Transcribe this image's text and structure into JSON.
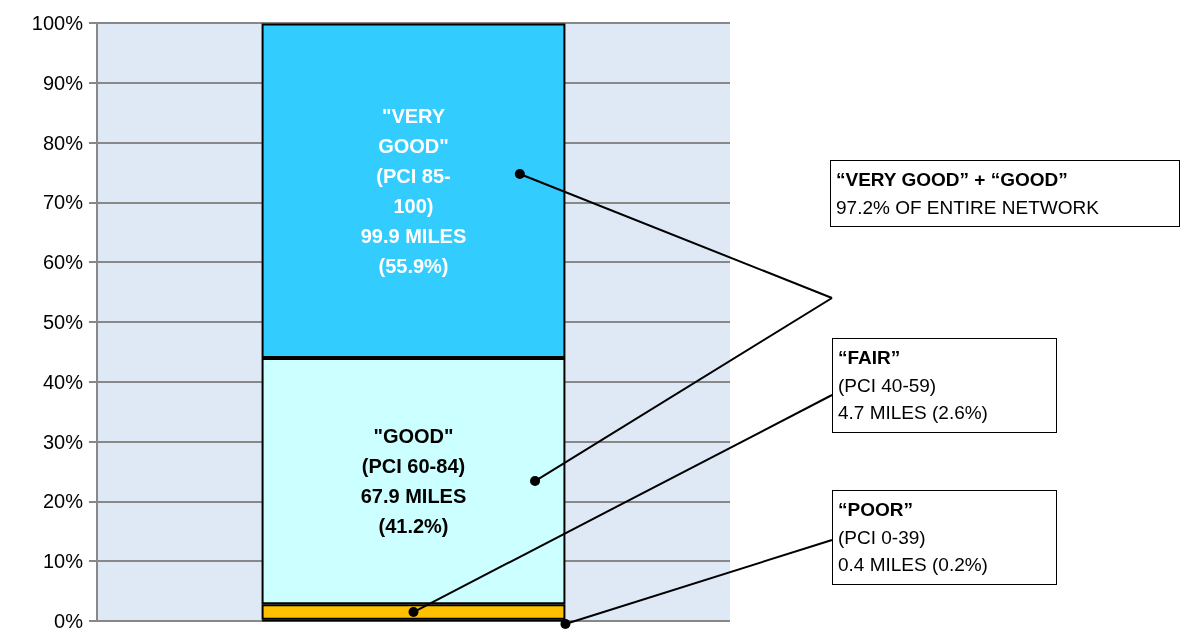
{
  "chart_data": {
    "type": "bar",
    "stacked": true,
    "categories": [
      null
    ],
    "series": [
      {
        "color": "#000000",
        "values": [
          0.2
        ],
        "value_labels": [
          null
        ]
      },
      {
        "color": "#ffc000",
        "values": [
          2.6
        ],
        "value_labels": [
          null
        ]
      },
      {
        "color": "#ccffff",
        "values": [
          41.2
        ],
        "value_labels": [
          "\"GOOD\"\n(PCI 60-84)\n67.9 MILES\n(41.2%)"
        ]
      },
      {
        "color": "#33ccff",
        "values": [
          55.9
        ],
        "value_labels": [
          "\"VERY\nGOOD\"\n(PCI 85-\n100)\n99.9 MILES\n(55.9%)"
        ]
      }
    ],
    "ylim": [
      0,
      100
    ],
    "yticks": [
      {
        "value": 0,
        "label": "0%"
      },
      {
        "value": 10,
        "label": "10%"
      },
      {
        "value": 20,
        "label": "20%"
      },
      {
        "value": 30,
        "label": "30%"
      },
      {
        "value": 40,
        "label": "40%"
      },
      {
        "value": 50,
        "label": "50%"
      },
      {
        "value": 60,
        "label": "60%"
      },
      {
        "value": 70,
        "label": "70%"
      },
      {
        "value": 80,
        "label": "80%"
      },
      {
        "value": 90,
        "label": "90%"
      },
      {
        "value": 100,
        "label": "100%"
      }
    ],
    "grid": "y",
    "annotations": [
      "“VERY GOOD” + “GOOD”\n97.2% OF ENTIRE NETWORK",
      "“FAIR”\n(PCI 40-59)\n4.7 MILES (2.6%)",
      "“POOR”\n(PCI 0-39)\n0.4 MILES (0.2%)"
    ]
  }
}
